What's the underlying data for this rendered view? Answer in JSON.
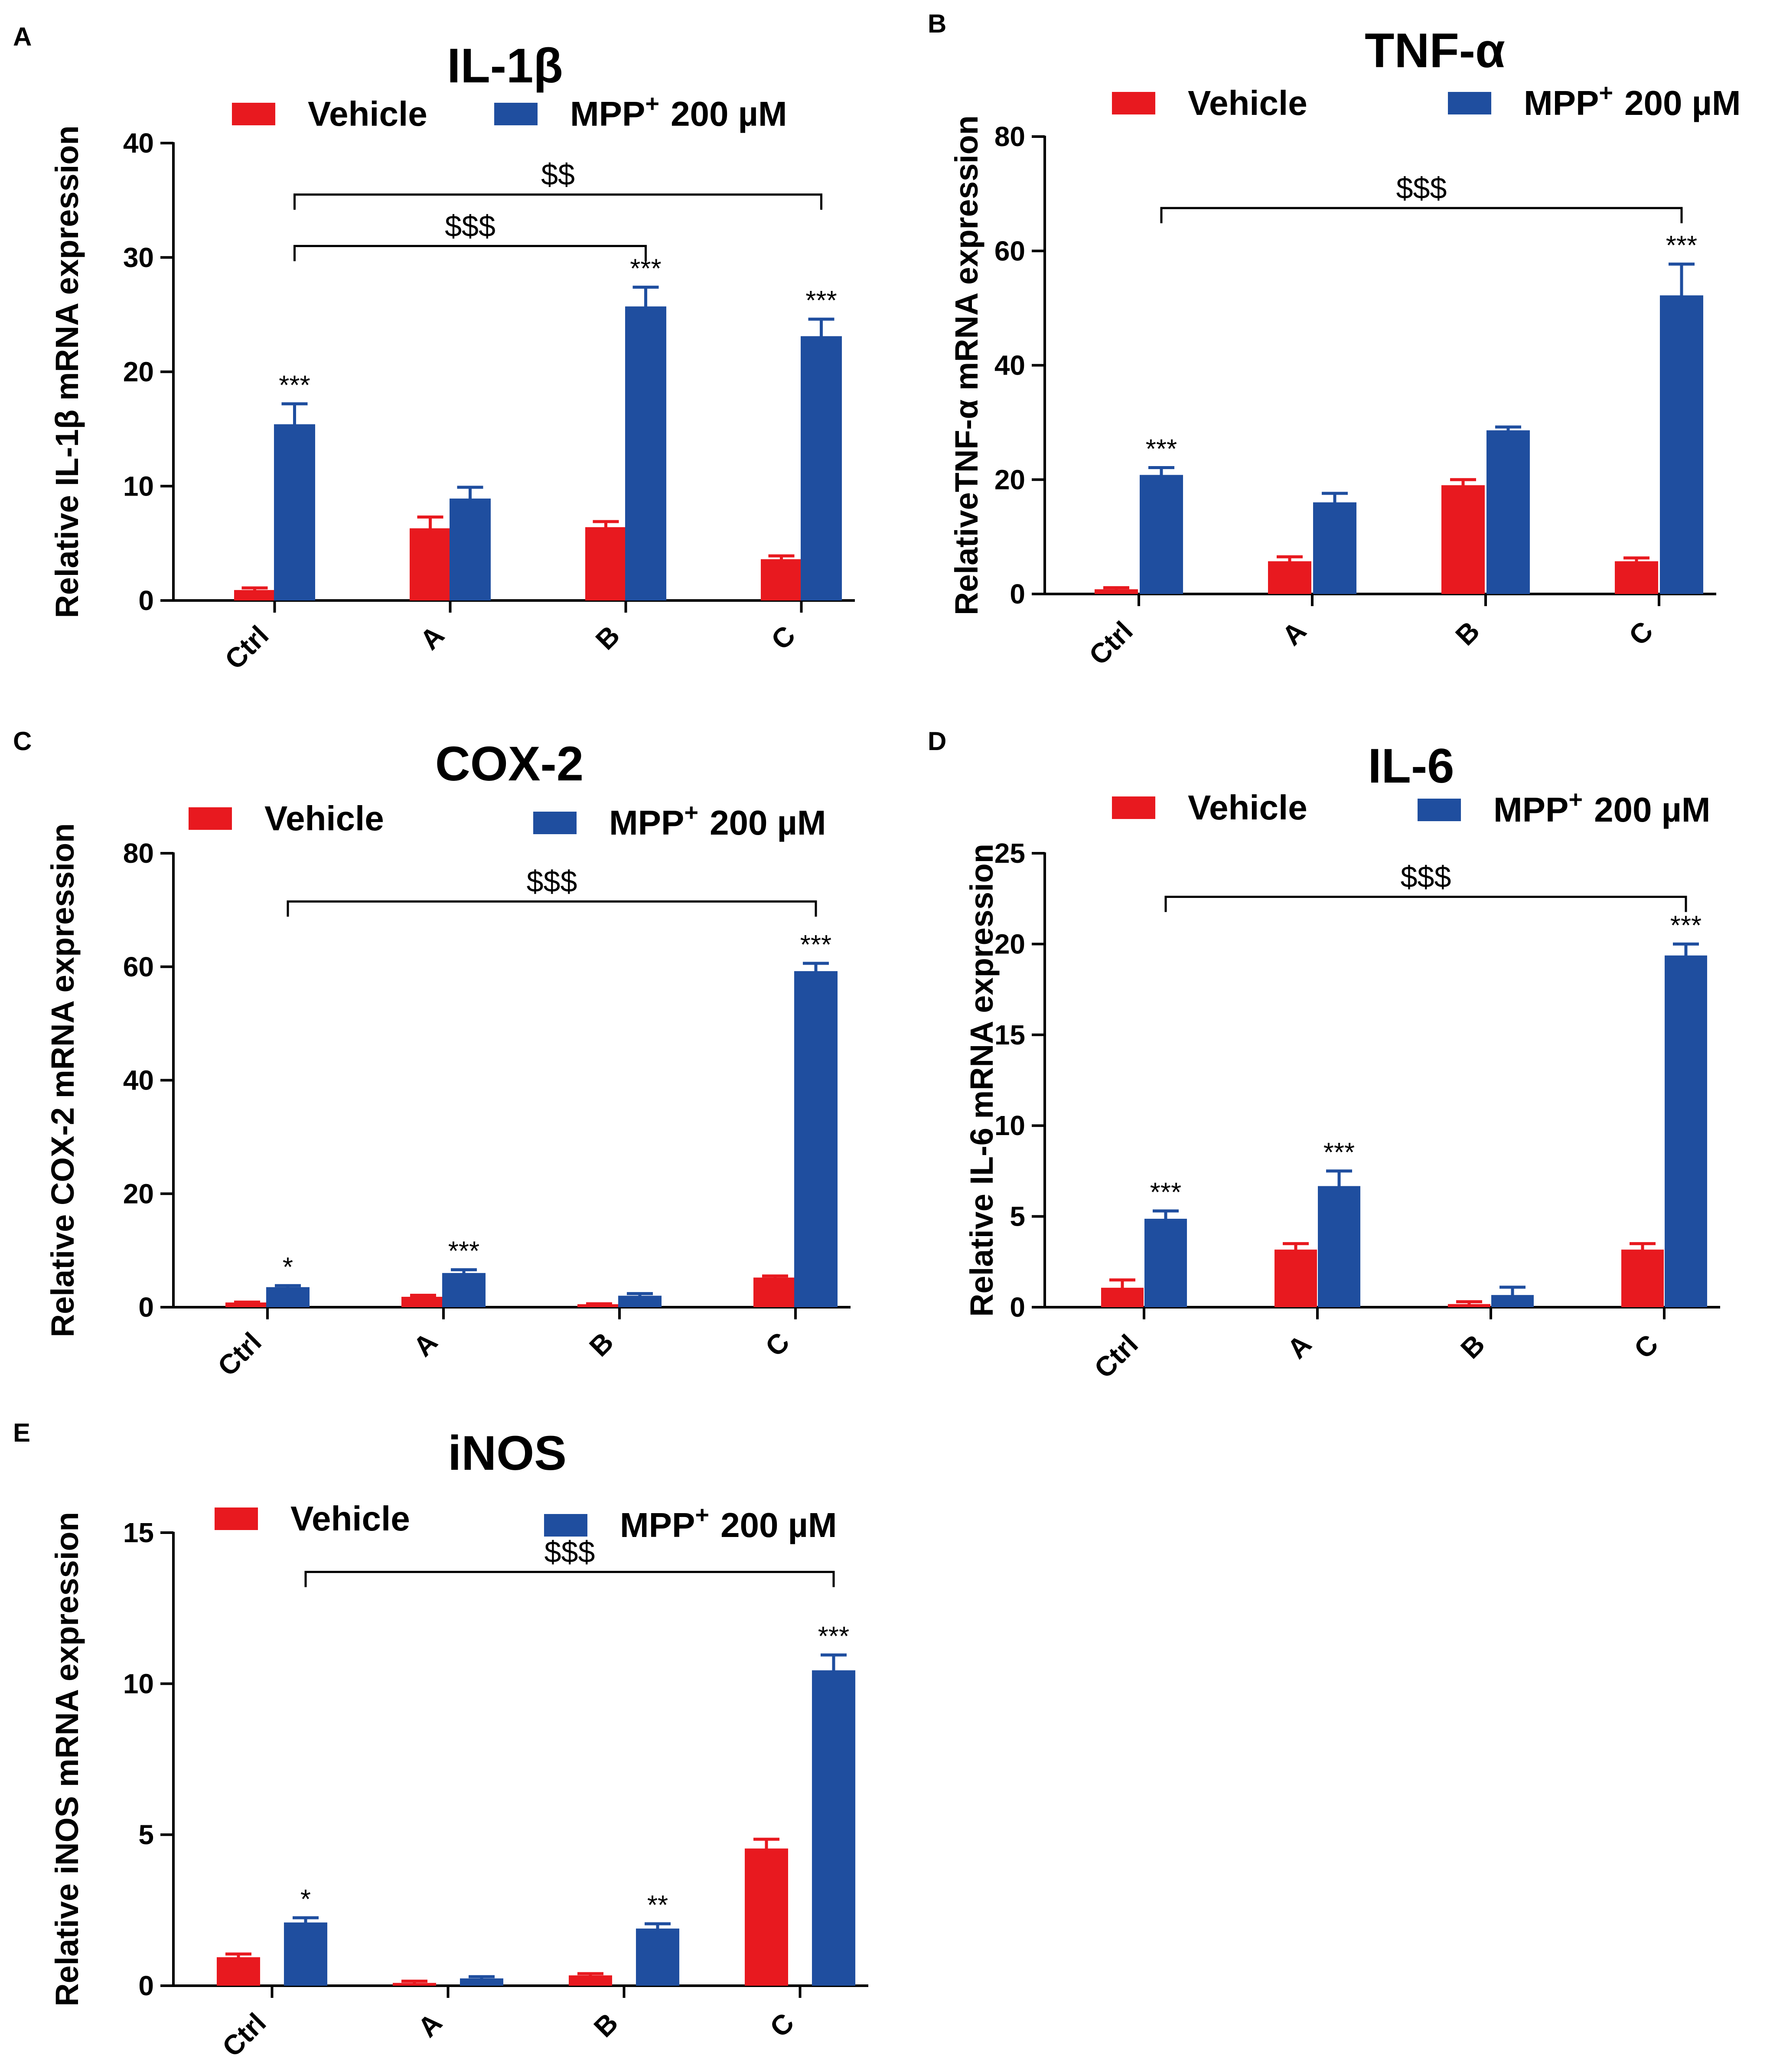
{
  "colors": {
    "vehicle": "#E8191F",
    "mpp": "#1F4E9F",
    "axis": "#000000"
  },
  "legend": {
    "vehicle": "Vehicle",
    "mpp_main": "MPP",
    "mpp_sup": "+",
    "mpp_dose": "200 µM"
  },
  "chart_data": [
    {
      "panel": "A",
      "type": "bar",
      "title": "IL-1β",
      "ylabel": "Relative IL-1β mRNA expression",
      "categories": [
        "Ctrl",
        "A",
        "B",
        "C"
      ],
      "ylim": [
        0,
        40
      ],
      "yticks": [
        0,
        10,
        20,
        30,
        40
      ],
      "series": [
        {
          "name": "Vehicle",
          "values": [
            0.8,
            6.2,
            6.3,
            3.5
          ],
          "errors": [
            0.3,
            1.1,
            0.6,
            0.4
          ],
          "sig": [
            "",
            "",
            "",
            ""
          ]
        },
        {
          "name": "MPP+ 200 µM",
          "values": [
            15.3,
            8.8,
            25.6,
            23.0
          ],
          "errors": [
            1.9,
            1.1,
            1.8,
            1.6
          ],
          "sig": [
            "***",
            "",
            "***",
            "***"
          ]
        }
      ],
      "brackets": [
        {
          "from": "Ctrl",
          "to": "C",
          "label": "$$",
          "y": 35.5
        },
        {
          "from": "Ctrl",
          "to": "B",
          "label": "$$$",
          "y": 31.0
        }
      ]
    },
    {
      "panel": "B",
      "type": "bar",
      "title": "TNF-α",
      "ylabel": "RelativeTNF-α mRNA expression",
      "categories": [
        "Ctrl",
        "A",
        "B",
        "C"
      ],
      "ylim": [
        0,
        80
      ],
      "yticks": [
        0,
        20,
        40,
        60,
        80
      ],
      "series": [
        {
          "name": "Vehicle",
          "values": [
            0.6,
            5.5,
            18.8,
            5.5
          ],
          "errors": [
            0.5,
            1.0,
            1.2,
            0.8
          ],
          "sig": [
            "",
            "",
            "",
            ""
          ]
        },
        {
          "name": "MPP+ 200 µM",
          "values": [
            20.6,
            15.8,
            28.4,
            52.0
          ],
          "errors": [
            1.5,
            1.8,
            0.8,
            5.7
          ],
          "sig": [
            "***",
            "",
            "",
            "***"
          ]
        }
      ],
      "brackets": [
        {
          "from": "Ctrl",
          "to": "C",
          "label": "$$$",
          "y": 67.5
        }
      ]
    },
    {
      "panel": "C",
      "type": "bar",
      "title": "COX-2",
      "ylabel": "Relative COX-2 mRNA expression",
      "categories": [
        "Ctrl",
        "A",
        "B",
        "C"
      ],
      "ylim": [
        0,
        80
      ],
      "yticks": [
        0,
        20,
        40,
        60,
        80
      ],
      "series": [
        {
          "name": "Vehicle",
          "values": [
            0.6,
            1.6,
            0.3,
            5.0
          ],
          "errors": [
            0.3,
            0.5,
            0.3,
            0.5
          ],
          "sig": [
            "",
            "",
            "",
            ""
          ]
        },
        {
          "name": "MPP+ 200 µM",
          "values": [
            3.3,
            5.8,
            1.8,
            59.0
          ],
          "errors": [
            0.5,
            0.8,
            0.6,
            1.6
          ],
          "sig": [
            "*",
            "***",
            "",
            "***"
          ]
        }
      ],
      "brackets": [
        {
          "from": "Ctrl",
          "to": "C",
          "label": "$$$",
          "y": 71.5
        }
      ]
    },
    {
      "panel": "D",
      "type": "bar",
      "title": "IL-6",
      "ylabel": "Relative IL-6 mRNA expression",
      "categories": [
        "Ctrl",
        "A",
        "B",
        "C"
      ],
      "ylim": [
        0,
        25
      ],
      "yticks": [
        0,
        5,
        10,
        15,
        20,
        25
      ],
      "series": [
        {
          "name": "Vehicle",
          "values": [
            1.0,
            3.1,
            0.1,
            3.1
          ],
          "errors": [
            0.5,
            0.4,
            0.2,
            0.4
          ],
          "sig": [
            "",
            "",
            "",
            ""
          ]
        },
        {
          "name": "MPP+ 200 µM",
          "values": [
            4.8,
            6.6,
            0.6,
            19.3
          ],
          "errors": [
            0.5,
            0.9,
            0.5,
            0.7
          ],
          "sig": [
            "***",
            "***",
            "",
            "***"
          ]
        }
      ],
      "brackets": [
        {
          "from": "Ctrl",
          "to": "C",
          "label": "$$$",
          "y": 22.6
        }
      ]
    },
    {
      "panel": "E",
      "type": "bar",
      "title": "iNOS",
      "ylabel": "Relative iNOS mRNA expression",
      "categories": [
        "Ctrl",
        "A",
        "B",
        "C"
      ],
      "ylim": [
        0,
        15
      ],
      "yticks": [
        0,
        5,
        10,
        15
      ],
      "series": [
        {
          "name": "Vehicle",
          "values": [
            0.9,
            0.05,
            0.3,
            4.5
          ],
          "errors": [
            0.15,
            0.1,
            0.1,
            0.35
          ],
          "sig": [
            "",
            "",
            "",
            ""
          ]
        },
        {
          "name": "MPP+ 200 µM",
          "values": [
            2.05,
            0.2,
            1.85,
            10.4
          ],
          "errors": [
            0.2,
            0.1,
            0.2,
            0.55
          ],
          "sig": [
            "*",
            "",
            "**",
            "***"
          ]
        }
      ],
      "brackets": [
        {
          "from": "Ctrl",
          "to": "C",
          "label": "$$$",
          "y": 13.7
        }
      ]
    }
  ]
}
